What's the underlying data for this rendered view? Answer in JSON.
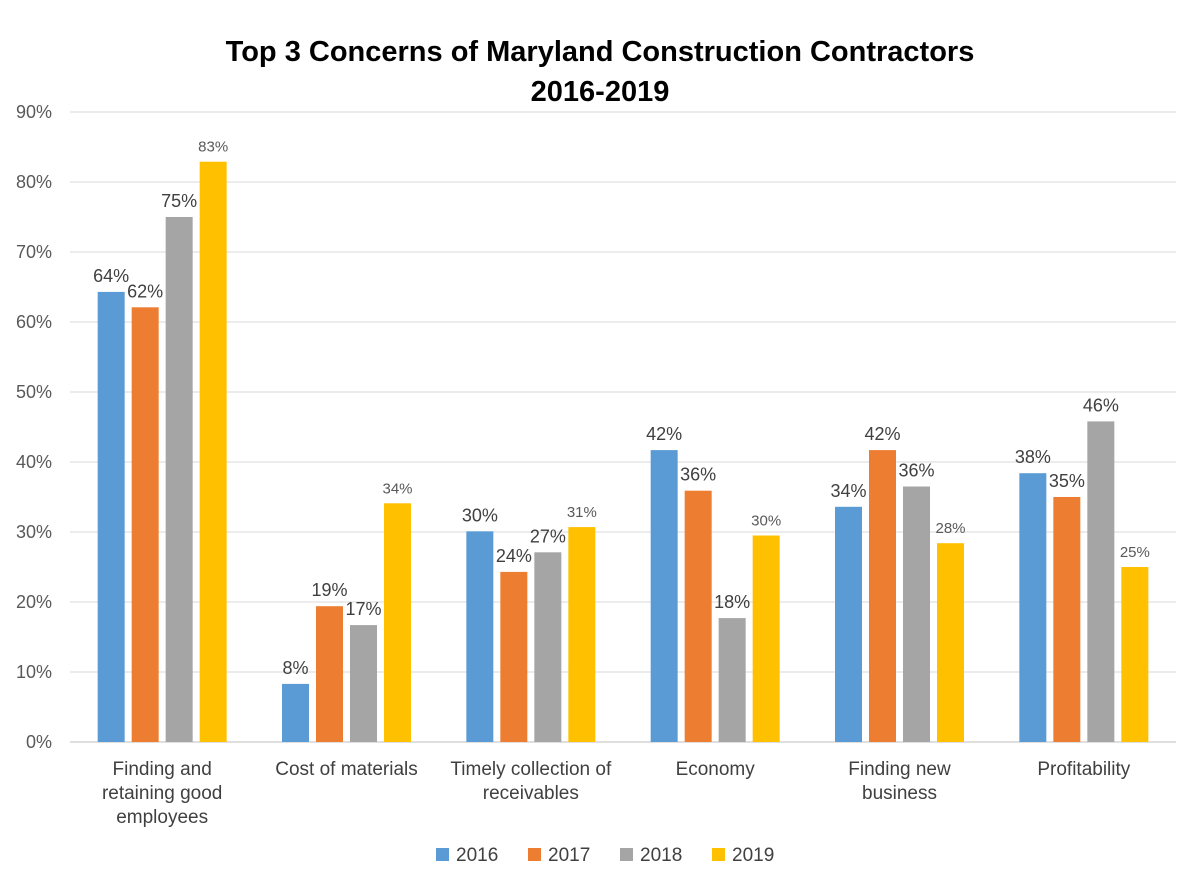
{
  "chart_data": {
    "type": "bar",
    "title": [
      "Top 3 Concerns of Maryland Construction Contractors",
      "2016-2019"
    ],
    "xlabel": "",
    "ylabel": "",
    "ylim": [
      0,
      90
    ],
    "y_ticks": [
      "0%",
      "10%",
      "20%",
      "30%",
      "40%",
      "50%",
      "60%",
      "70%",
      "80%",
      "90%"
    ],
    "grid": true,
    "legend_position": "bottom",
    "categories": [
      [
        "Finding and",
        "retaining good",
        "employees"
      ],
      [
        "Cost of materials"
      ],
      [
        "Timely collection of",
        "receivables"
      ],
      [
        "Economy"
      ],
      [
        "Finding new",
        "business"
      ],
      [
        "Profitability"
      ]
    ],
    "series": [
      {
        "name": "2016",
        "color": "#5B9BD5",
        "values": [
          64.3,
          8.3,
          30.1,
          41.7,
          33.6,
          38.4
        ],
        "labels": [
          "64%",
          "8%",
          "30%",
          "42%",
          "34%",
          "38%"
        ]
      },
      {
        "name": "2017",
        "color": "#ED7D31",
        "values": [
          62.1,
          19.4,
          24.3,
          35.9,
          41.7,
          35.0
        ],
        "labels": [
          "62%",
          "19%",
          "24%",
          "36%",
          "42%",
          "35%"
        ]
      },
      {
        "name": "2018",
        "color": "#A5A5A5",
        "values": [
          75.0,
          16.7,
          27.1,
          17.7,
          36.5,
          45.8
        ],
        "labels": [
          "75%",
          "17%",
          "27%",
          "18%",
          "36%",
          "46%"
        ]
      },
      {
        "name": "2019",
        "color": "#FFC000",
        "values": [
          82.9,
          34.1,
          30.7,
          29.5,
          28.4,
          25.0
        ],
        "labels": [
          "83%",
          "34%",
          "31%",
          "30%",
          "28%",
          "25%"
        ]
      }
    ]
  }
}
